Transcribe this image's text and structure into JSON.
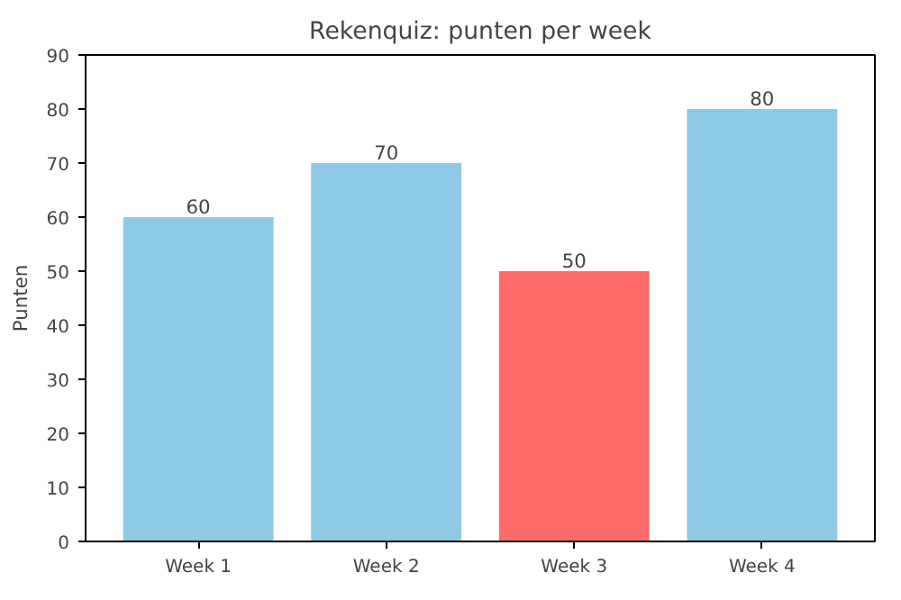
{
  "chart_data": {
    "type": "bar",
    "title": "Rekenquiz: punten per week",
    "ylabel": "Punten",
    "categories": [
      "Week 1",
      "Week 2",
      "Week 3",
      "Week 4"
    ],
    "values": [
      60,
      70,
      50,
      80
    ],
    "colors": [
      "#8ecae6",
      "#8ecae6",
      "#ff6b6b",
      "#8ecae6"
    ],
    "ylim": [
      0,
      90
    ],
    "yticks": [
      0,
      10,
      20,
      30,
      40,
      50,
      60,
      70,
      80,
      90
    ],
    "data_labels": true,
    "grid": false
  }
}
